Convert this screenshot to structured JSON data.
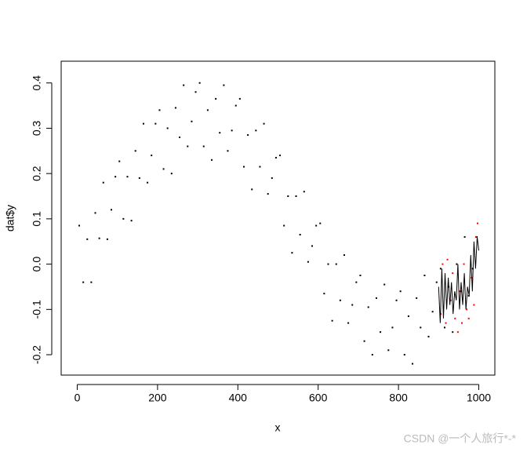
{
  "chart_data": {
    "type": "scatter",
    "xlabel": "x",
    "ylabel": "dat$y",
    "xlim": [
      -40,
      1040
    ],
    "ylim": [
      -0.245,
      0.448
    ],
    "xticks": [
      0,
      200,
      400,
      600,
      800,
      1000
    ],
    "yticks": [
      -0.2,
      -0.1,
      {
        "value": 0,
        "label": "0.0"
      },
      0.1,
      0.2,
      0.3,
      0.4
    ],
    "series": [
      {
        "type": "scatter",
        "color": "#000000",
        "x": [
          5,
          15,
          25,
          35,
          45,
          55,
          65,
          75,
          85,
          95,
          105,
          115,
          125,
          135,
          145,
          155,
          165,
          175,
          185,
          195,
          205,
          215,
          225,
          235,
          245,
          255,
          265,
          275,
          285,
          295,
          305,
          315,
          325,
          335,
          345,
          355,
          365,
          375,
          385,
          395,
          405,
          415,
          425,
          435,
          445,
          455,
          465,
          475,
          485,
          495,
          505,
          515,
          525,
          535,
          545,
          555,
          565,
          575,
          585,
          595,
          605,
          615,
          625,
          635,
          645,
          655,
          665,
          675,
          685,
          695,
          705,
          715,
          725,
          735,
          745,
          755,
          765,
          775,
          785,
          795,
          805,
          815,
          825,
          835,
          845,
          855,
          865,
          875,
          885,
          895,
          905,
          915,
          925,
          935,
          945,
          955,
          965,
          975,
          985,
          995
        ],
        "values": [
          0.085,
          -0.04,
          0.055,
          -0.04,
          0.113,
          0.057,
          0.18,
          0.055,
          0.12,
          0.193,
          0.227,
          0.1,
          0.193,
          0.096,
          0.25,
          0.19,
          0.31,
          0.18,
          0.24,
          0.31,
          0.34,
          0.21,
          0.3,
          0.2,
          0.345,
          0.28,
          0.395,
          0.26,
          0.315,
          0.38,
          0.4,
          0.26,
          0.34,
          0.23,
          0.365,
          0.29,
          0.395,
          0.25,
          0.295,
          0.35,
          0.365,
          0.215,
          0.285,
          0.165,
          0.295,
          0.215,
          0.31,
          0.155,
          0.19,
          0.235,
          0.24,
          0.085,
          0.15,
          0.025,
          0.15,
          0.065,
          0.16,
          0.005,
          0.04,
          0.085,
          0.09,
          -0.065,
          0.0,
          -0.125,
          0.0,
          -0.08,
          0.02,
          -0.13,
          -0.09,
          -0.04,
          -0.025,
          -0.17,
          -0.095,
          -0.2,
          -0.075,
          -0.15,
          -0.045,
          -0.19,
          -0.14,
          -0.08,
          -0.06,
          -0.2,
          -0.115,
          -0.22,
          -0.075,
          -0.14,
          -0.025,
          -0.16,
          -0.105,
          -0.04,
          -0.01,
          -0.14,
          -0.05,
          -0.15,
          0.0,
          -0.06,
          0.06,
          -0.07,
          -0.01,
          0.06
        ]
      },
      {
        "type": "scatter",
        "color": "#ff0000",
        "x": [
          905,
          910,
          918,
          922,
          930,
          935,
          941,
          948,
          952,
          958,
          963,
          970,
          975,
          982,
          988,
          993,
          997
        ],
        "values": [
          -0.11,
          0.0,
          -0.13,
          0.01,
          -0.08,
          -0.02,
          -0.12,
          -0.15,
          -0.06,
          -0.13,
          0.0,
          -0.1,
          -0.12,
          -0.03,
          -0.09,
          0.06,
          0.09
        ]
      },
      {
        "type": "line",
        "color": "#000000",
        "x": [
          900,
          904,
          908,
          912,
          916,
          920,
          924,
          928,
          932,
          936,
          940,
          944,
          948,
          952,
          956,
          960,
          964,
          968,
          972,
          976,
          980,
          984,
          988,
          992,
          996,
          1000
        ],
        "values": [
          -0.05,
          -0.13,
          -0.01,
          -0.12,
          -0.02,
          -0.1,
          -0.03,
          -0.09,
          -0.04,
          -0.11,
          -0.06,
          -0.08,
          0.0,
          -0.1,
          -0.04,
          -0.09,
          -0.02,
          -0.1,
          -0.05,
          -0.07,
          0.02,
          -0.06,
          0.05,
          -0.01,
          0.06,
          0.03
        ]
      }
    ]
  },
  "watermark": "CSDN @一个人旅行*-*"
}
